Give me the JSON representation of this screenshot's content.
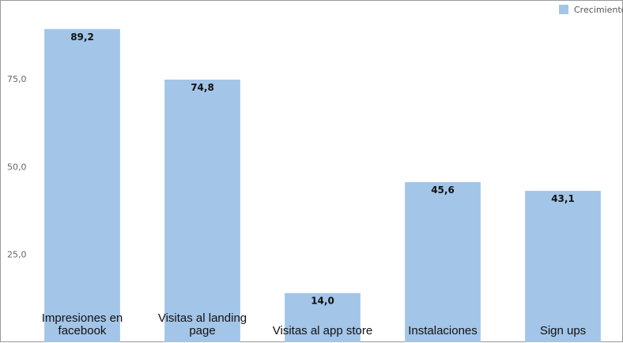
{
  "chart_data": {
    "type": "bar",
    "categories": [
      [
        "Impresiones en",
        "facebook"
      ],
      [
        "Visitas al landing",
        "page"
      ],
      [
        "Visitas al app store"
      ],
      [
        "Instalaciones"
      ],
      [
        "Sign ups"
      ]
    ],
    "series": [
      {
        "name": "Crecimiento",
        "color": "#a3c5e8",
        "values": [
          89.2,
          74.8,
          14.0,
          45.6,
          43.1
        ],
        "value_labels": [
          "89,2",
          "74,8",
          "14,0",
          "45,6",
          "43,1"
        ]
      }
    ],
    "ylim": [
      0,
      95
    ],
    "yticks": [
      25,
      50,
      75
    ],
    "ytick_labels": [
      "25,0",
      "50,0",
      "75,0"
    ],
    "grid": false,
    "legend_position": "top-right"
  }
}
